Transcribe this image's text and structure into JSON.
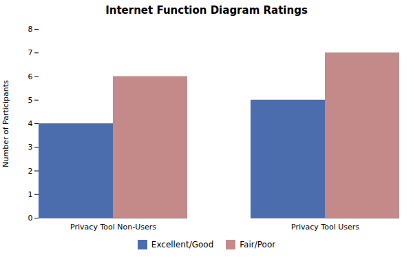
{
  "chart_data": {
    "type": "bar",
    "title": "Internet Function Diagram Ratings",
    "categories": [
      "Privacy Tool Non-Users",
      "Privacy Tool Users"
    ],
    "series": [
      {
        "name": "Excellent/Good",
        "color": "#4B6DAD",
        "values": [
          4,
          5
        ]
      },
      {
        "name": "Fair/Poor",
        "color": "#C48A8A",
        "values": [
          6,
          7
        ]
      }
    ],
    "ylabel": "Number of Participants",
    "ylim": [
      0,
      8
    ],
    "yticks": [
      0,
      1,
      2,
      3,
      4,
      5,
      6,
      7,
      8
    ],
    "grid": false,
    "legend": "bottom"
  }
}
